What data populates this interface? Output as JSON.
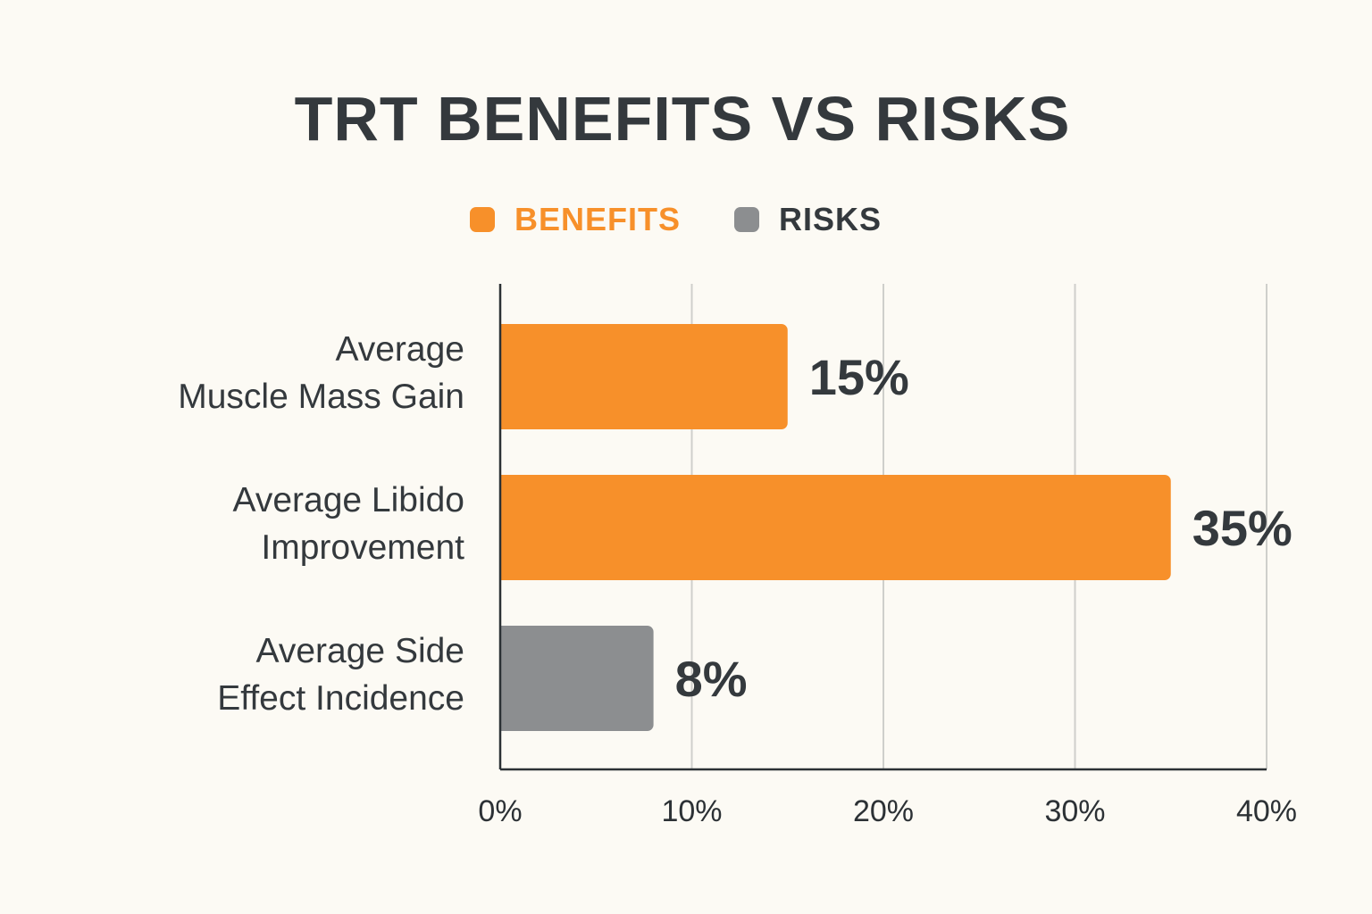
{
  "chart_data": {
    "type": "bar",
    "orientation": "horizontal",
    "title": "TRT BENEFITS VS RISKS",
    "categories": [
      [
        "Average",
        "Muscle Mass Gain"
      ],
      [
        "Average Libido",
        "Improvement"
      ],
      [
        "Average Side",
        "Effect Incidence"
      ]
    ],
    "values": [
      15,
      35,
      8
    ],
    "value_labels": [
      "15%",
      "35%",
      "8%"
    ],
    "series_membership": [
      "BENEFITS",
      "BENEFITS",
      "RISKS"
    ],
    "legend": [
      {
        "name": "BENEFITS",
        "color": "#f7902a"
      },
      {
        "name": "RISKS",
        "color": "#8c8e90"
      }
    ],
    "legend_position": "top-center",
    "x_ticks": [
      "0%",
      "10%",
      "20%",
      "30%",
      "40%"
    ],
    "xlim": [
      0,
      40
    ],
    "grid": "vertical",
    "xlabel": "",
    "ylabel": ""
  },
  "colors": {
    "benefits": "#f7902a",
    "risks": "#8c8e90",
    "text": "#34393d",
    "grid": "#cfcfcb",
    "background": "#fcfaf4"
  }
}
